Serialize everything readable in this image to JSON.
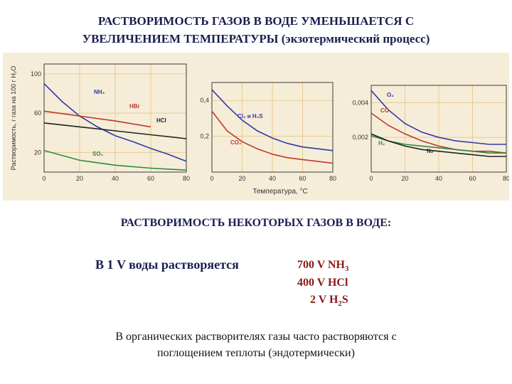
{
  "title_line1": "РАСТВОРИМОСТЬ ГАЗОВ В ВОДЕ УМЕНЬШАЕТСЯ С",
  "title_line2": "УВЕЛИЧЕНИЕМ ТЕМПЕРАТУРЫ (экзотермический процесс)",
  "chart_data": [
    {
      "type": "line",
      "xlabel": "Температура, °C",
      "ylabel": "Растворимость, г газа на 100 г H₂O",
      "x_ticks": [
        "0",
        "20",
        "40",
        "60",
        "80"
      ],
      "y_ticks": [
        "20",
        "60",
        "100"
      ],
      "xlim": [
        0,
        80
      ],
      "ylim": [
        0,
        110
      ],
      "series": [
        {
          "name": "NH₃",
          "color": "#2f3aa8",
          "x": [
            0,
            10,
            20,
            30,
            40,
            50,
            60,
            70,
            80
          ],
          "y": [
            90,
            72,
            57,
            46,
            37,
            31,
            24,
            18,
            11
          ]
        },
        {
          "name": "HBr",
          "color": "#c0392b",
          "x": [
            0,
            20,
            40,
            60
          ],
          "y": [
            62,
            57,
            52,
            46
          ]
        },
        {
          "name": "HCl",
          "color": "#222222",
          "x": [
            0,
            20,
            40,
            60,
            80
          ],
          "y": [
            50,
            46,
            42,
            38,
            34
          ]
        },
        {
          "name": "SO₂",
          "color": "#2e8b3e",
          "x": [
            0,
            20,
            40,
            60,
            80
          ],
          "y": [
            22,
            12,
            7,
            4,
            2
          ]
        }
      ]
    },
    {
      "type": "line",
      "xlabel": "",
      "ylabel": "",
      "x_ticks": [
        "0",
        "20",
        "40",
        "60",
        "80"
      ],
      "y_ticks": [
        "0,2",
        "0,4"
      ],
      "xlim": [
        0,
        80
      ],
      "ylim": [
        0,
        0.5
      ],
      "series": [
        {
          "name": "Cl₂ и H₂S",
          "color": "#2f3aa8",
          "x": [
            0,
            10,
            20,
            30,
            40,
            50,
            60,
            70,
            80
          ],
          "y": [
            0.46,
            0.37,
            0.29,
            0.23,
            0.19,
            0.16,
            0.14,
            0.13,
            0.12
          ]
        },
        {
          "name": "CO₂",
          "color": "#c0392b",
          "x": [
            0,
            10,
            20,
            30,
            40,
            50,
            60,
            70,
            80
          ],
          "y": [
            0.34,
            0.23,
            0.17,
            0.13,
            0.1,
            0.08,
            0.07,
            0.06,
            0.05
          ]
        }
      ]
    },
    {
      "type": "line",
      "xlabel": "",
      "ylabel": "",
      "x_ticks": [
        "0",
        "20",
        "40",
        "60",
        "80"
      ],
      "y_ticks": [
        "0,002",
        "0,004"
      ],
      "xlim": [
        0,
        80
      ],
      "ylim": [
        0,
        0.005
      ],
      "series": [
        {
          "name": "O₂",
          "color": "#2f3aa8",
          "x": [
            0,
            10,
            20,
            30,
            40,
            50,
            60,
            70,
            80
          ],
          "y": [
            0.0047,
            0.0036,
            0.0028,
            0.0023,
            0.002,
            0.0018,
            0.0017,
            0.0016,
            0.0016
          ]
        },
        {
          "name": "CO",
          "color": "#c0392b",
          "x": [
            0,
            10,
            20,
            30,
            40,
            50,
            60,
            70,
            80
          ],
          "y": [
            0.0034,
            0.0027,
            0.0022,
            0.0018,
            0.0015,
            0.0013,
            0.0012,
            0.0012,
            0.0011
          ]
        },
        {
          "name": "H₂",
          "color": "#2e8b3e",
          "x": [
            0,
            10,
            20,
            30,
            40,
            50,
            60,
            70,
            80
          ],
          "y": [
            0.0021,
            0.0018,
            0.0016,
            0.0015,
            0.0014,
            0.0013,
            0.0012,
            0.0011,
            0.0011
          ]
        },
        {
          "name": "N₂",
          "color": "#222222",
          "x": [
            0,
            10,
            20,
            30,
            40,
            50,
            60,
            70,
            80
          ],
          "y": [
            0.0022,
            0.0018,
            0.0015,
            0.0013,
            0.0012,
            0.0011,
            0.001,
            0.0009,
            0.0009
          ]
        }
      ]
    }
  ],
  "subtitle": "РАСТВОРИМОСТЬ НЕКОТОРЫХ ГАЗОВ В ВОДЕ:",
  "dissolve_label": "В 1 V воды растворяется",
  "gases": [
    {
      "prefix": "700 V NH",
      "sub": "3",
      "suffix": ""
    },
    {
      "prefix": "400 V HCl",
      "sub": "",
      "suffix": ""
    },
    {
      "prefix": "2 V H",
      "sub": "2",
      "suffix": "S"
    }
  ],
  "footer_line1": "В органических растворителях газы часто растворяются с",
  "footer_line2": "поглощением теплоты (эндотермически)"
}
